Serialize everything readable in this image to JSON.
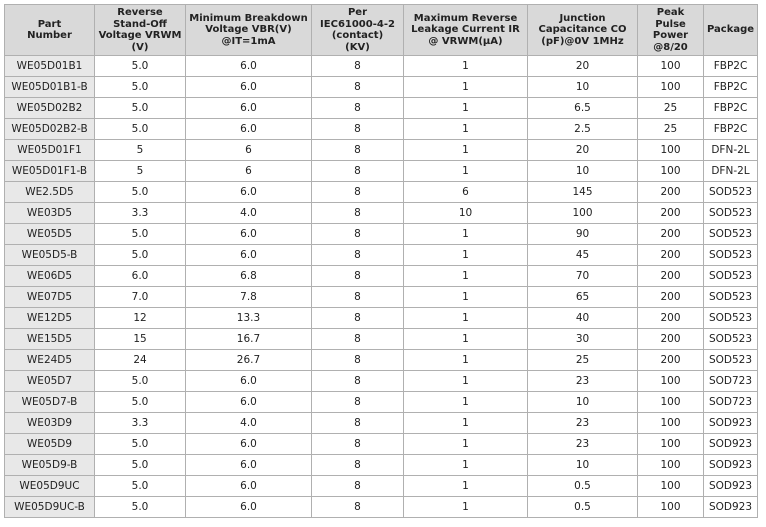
{
  "table": {
    "header": [
      "Part\nNumber",
      "Reverse\nStand-Off\nVoltage VRWM\n(V)",
      "Minimum Breakdown\nVoltage VBR(V)\n@IT=1mA",
      "Per\nIEC61000-4-2\n(contact)\n(KV)",
      "Maximum Reverse\nLeakage Current IR\n@ VRWM(μA)",
      "Junction\nCapacitance CO\n(pF)@0V 1MHz",
      "Peak Pulse\nPower\n@8/20",
      "Package"
    ],
    "rows": [
      [
        "WE05D01B1",
        "5.0",
        "6.0",
        "8",
        "1",
        "20",
        "100",
        "FBP2C"
      ],
      [
        "WE05D01B1-B",
        "5.0",
        "6.0",
        "8",
        "1",
        "10",
        "100",
        "FBP2C"
      ],
      [
        "WE05D02B2",
        "5.0",
        "6.0",
        "8",
        "1",
        "6.5",
        "25",
        "FBP2C"
      ],
      [
        "WE05D02B2-B",
        "5.0",
        "6.0",
        "8",
        "1",
        "2.5",
        "25",
        "FBP2C"
      ],
      [
        "WE05D01F1",
        "5",
        "6",
        "8",
        "1",
        "20",
        "100",
        "DFN-2L"
      ],
      [
        "WE05D01F1-B",
        "5",
        "6",
        "8",
        "1",
        "10",
        "100",
        "DFN-2L"
      ],
      [
        "WE2.5D5",
        "5.0",
        "6.0",
        "8",
        "6",
        "145",
        "200",
        "SOD523"
      ],
      [
        "WE03D5",
        "3.3",
        "4.0",
        "8",
        "10",
        "100",
        "200",
        "SOD523"
      ],
      [
        "WE05D5",
        "5.0",
        "6.0",
        "8",
        "1",
        "90",
        "200",
        "SOD523"
      ],
      [
        "WE05D5-B",
        "5.0",
        "6.0",
        "8",
        "1",
        "45",
        "200",
        "SOD523"
      ],
      [
        "WE06D5",
        "6.0",
        "6.8",
        "8",
        "1",
        "70",
        "200",
        "SOD523"
      ],
      [
        "WE07D5",
        "7.0",
        "7.8",
        "8",
        "1",
        "65",
        "200",
        "SOD523"
      ],
      [
        "WE12D5",
        "12",
        "13.3",
        "8",
        "1",
        "40",
        "200",
        "SOD523"
      ],
      [
        "WE15D5",
        "15",
        "16.7",
        "8",
        "1",
        "30",
        "200",
        "SOD523"
      ],
      [
        "WE24D5",
        "24",
        "26.7",
        "8",
        "1",
        "25",
        "200",
        "SOD523"
      ],
      [
        "WE05D7",
        "5.0",
        "6.0",
        "8",
        "1",
        "23",
        "100",
        "SOD723"
      ],
      [
        "WE05D7-B",
        "5.0",
        "6.0",
        "8",
        "1",
        "10",
        "100",
        "SOD723"
      ],
      [
        "WE03D9",
        "3.3",
        "4.0",
        "8",
        "1",
        "23",
        "100",
        "SOD923"
      ],
      [
        "WE05D9",
        "5.0",
        "6.0",
        "8",
        "1",
        "23",
        "100",
        "SOD923"
      ],
      [
        "WE05D9-B",
        "5.0",
        "6.0",
        "8",
        "1",
        "10",
        "100",
        "SOD923"
      ],
      [
        "WE05D9UC",
        "5.0",
        "6.0",
        "8",
        "1",
        "0.5",
        "100",
        "SOD923"
      ],
      [
        "WE05D9UC-B",
        "5.0",
        "6.0",
        "8",
        "1",
        "0.5",
        "100",
        "SOD923"
      ]
    ]
  }
}
